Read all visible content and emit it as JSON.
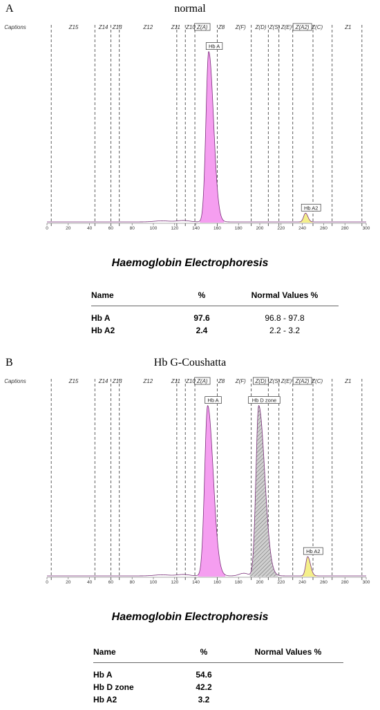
{
  "panels": [
    {
      "id": "A",
      "letter": "A",
      "title": "normal",
      "table": {
        "title": "Haemoglobin Electrophoresis",
        "headers": {
          "name": "Name",
          "pct": "%",
          "normal": "Normal Values %"
        },
        "rows": [
          {
            "name": "Hb A",
            "pct": "97.6",
            "normal": "96.8 - 97.8"
          },
          {
            "name": "Hb A2",
            "pct": "2.4",
            "normal": "2.2 -  3.2"
          }
        ]
      }
    },
    {
      "id": "B",
      "letter": "B",
      "title": "Hb G-Coushatta",
      "table": {
        "title": "Haemoglobin Electrophoresis",
        "headers": {
          "name": "Name",
          "pct": "%",
          "normal": "Normal Values %"
        },
        "rows": [
          {
            "name": "Hb A",
            "pct": "54.6",
            "normal": ""
          },
          {
            "name": "Hb D zone",
            "pct": "42.2",
            "normal": ""
          },
          {
            "name": "Hb A2",
            "pct": "3.2",
            "normal": ""
          }
        ]
      }
    }
  ],
  "chart_data": [
    {
      "type": "area",
      "panel": "A",
      "title": "normal",
      "xlim": [
        0,
        300
      ],
      "ylim": [
        0,
        100
      ],
      "x_ticks": [
        0,
        20,
        40,
        60,
        80,
        100,
        120,
        140,
        160,
        180,
        200,
        220,
        240,
        260,
        280,
        300
      ],
      "zones": [
        {
          "label": "Captions",
          "x": 0
        },
        {
          "label": "Z15",
          "x": 25
        },
        {
          "label": "Z14",
          "x": 53
        },
        {
          "label": "Z13",
          "x": 66
        },
        {
          "label": "Z12",
          "x": 95
        },
        {
          "label": "Z11",
          "x": 121
        },
        {
          "label": "Z10",
          "x": 135
        },
        {
          "label": "Z(A)",
          "x": 146,
          "boxed": true
        },
        {
          "label": "Z8",
          "x": 164
        },
        {
          "label": "Z(F)",
          "x": 182
        },
        {
          "label": "Z(D)",
          "x": 201
        },
        {
          "label": "Z(S)",
          "x": 214
        },
        {
          "label": "Z(E)",
          "x": 225
        },
        {
          "label": "Z(A2)",
          "x": 240,
          "boxed": true
        },
        {
          "label": "Z(C)",
          "x": 254
        },
        {
          "label": "Z1",
          "x": 283
        }
      ],
      "zone_boundaries": [
        4,
        45,
        60,
        68,
        122,
        130,
        139,
        160,
        192,
        208,
        218,
        231,
        250,
        268,
        296
      ],
      "peaks": [
        {
          "name": "Hb A",
          "center": 152,
          "height": 97,
          "width_left": 2.6,
          "width_right": 4.5,
          "fill": "#f59ef0",
          "label": "Hb A"
        },
        {
          "name": "Hb A2",
          "center": 243,
          "height": 5,
          "width_left": 1.8,
          "width_right": 2.2,
          "fill": "#f4ef8a",
          "label": "Hb A2"
        }
      ],
      "series": [
        {
          "name": "Hb A",
          "percent": 97.6
        },
        {
          "name": "Hb A2",
          "percent": 2.4
        }
      ]
    },
    {
      "type": "area",
      "panel": "B",
      "title": "Hb G-Coushatta",
      "xlim": [
        0,
        300
      ],
      "ylim": [
        0,
        100
      ],
      "x_ticks": [
        0,
        20,
        40,
        60,
        80,
        100,
        120,
        140,
        160,
        180,
        200,
        220,
        240,
        260,
        280,
        300
      ],
      "zones": [
        {
          "label": "Captions",
          "x": 0
        },
        {
          "label": "Z15",
          "x": 25
        },
        {
          "label": "Z14",
          "x": 53
        },
        {
          "label": "Z13",
          "x": 66
        },
        {
          "label": "Z12",
          "x": 95
        },
        {
          "label": "Z11",
          "x": 121
        },
        {
          "label": "Z10",
          "x": 135
        },
        {
          "label": "Z(A)",
          "x": 146,
          "boxed": true
        },
        {
          "label": "Z8",
          "x": 164
        },
        {
          "label": "Z(F)",
          "x": 182
        },
        {
          "label": "Z(D)",
          "x": 201,
          "boxed": true
        },
        {
          "label": "Z(S)",
          "x": 214
        },
        {
          "label": "Z(E)",
          "x": 225
        },
        {
          "label": "Z(A2)",
          "x": 240,
          "boxed": true
        },
        {
          "label": "Z(C)",
          "x": 254
        },
        {
          "label": "Z1",
          "x": 283
        }
      ],
      "zone_boundaries": [
        4,
        45,
        60,
        68,
        122,
        130,
        139,
        160,
        192,
        208,
        218,
        231,
        250,
        268,
        296
      ],
      "peaks": [
        {
          "name": "Hb A",
          "center": 151,
          "height": 97,
          "width_left": 2.8,
          "width_right": 5.2,
          "fill": "#f59ef0",
          "label": "Hb A"
        },
        {
          "name": "Hb D zone",
          "center": 199,
          "height": 97,
          "width_left": 2.6,
          "width_right": 5.6,
          "fill": "#bbbbbb",
          "hatched": true,
          "label": "Hb D zone"
        },
        {
          "name": "Hb A2",
          "center": 245,
          "height": 11,
          "width_left": 1.8,
          "width_right": 2.6,
          "fill": "#f4ef8a",
          "label": "Hb A2"
        }
      ],
      "series": [
        {
          "name": "Hb A",
          "percent": 54.6
        },
        {
          "name": "Hb D zone",
          "percent": 42.2
        },
        {
          "name": "Hb A2",
          "percent": 3.2
        }
      ]
    }
  ]
}
